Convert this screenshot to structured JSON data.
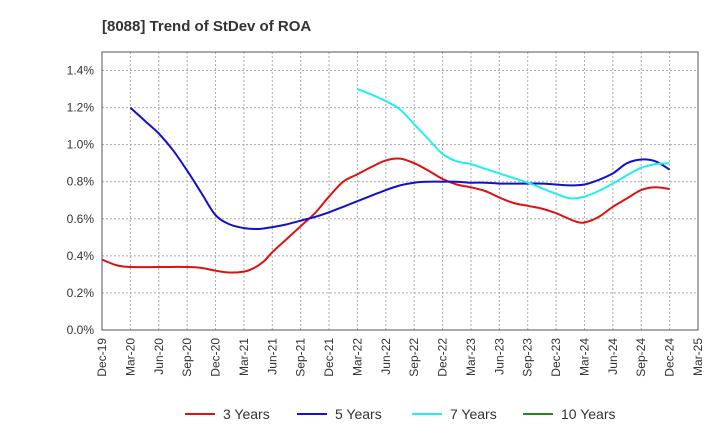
{
  "chart_data": {
    "type": "line",
    "title": "[8088]  Trend of StDev of ROA",
    "xlabel": "",
    "ylabel": "",
    "x_ticks": [
      "Dec-19",
      "Mar-20",
      "Jun-20",
      "Sep-20",
      "Dec-20",
      "Mar-21",
      "Jun-21",
      "Sep-21",
      "Dec-21",
      "Mar-22",
      "Jun-22",
      "Sep-22",
      "Dec-22",
      "Mar-23",
      "Jun-23",
      "Sep-23",
      "Dec-23",
      "Mar-24",
      "Jun-24",
      "Sep-24",
      "Dec-24",
      "Mar-25"
    ],
    "y_ticks": [
      "0.0%",
      "0.2%",
      "0.4%",
      "0.6%",
      "0.8%",
      "1.0%",
      "1.2%",
      "1.4%"
    ],
    "ylim": [
      0,
      1.5
    ],
    "grid": true,
    "legend_position": "bottom",
    "series": [
      {
        "name": "3 Years",
        "color": "#dd1111",
        "x": [
          0,
          0.5,
          1,
          2,
          3,
          3.5,
          4,
          4.5,
          5,
          5.3,
          5.7,
          6,
          6.5,
          7,
          7.5,
          8,
          8.5,
          9,
          9.5,
          10,
          10.5,
          11,
          11.5,
          12,
          12.5,
          13,
          13.5,
          14,
          14.5,
          15,
          15.5,
          16,
          16.3,
          16.7,
          17,
          17.5,
          18,
          18.5,
          19,
          19.5,
          20
        ],
        "values": [
          0.38,
          0.35,
          0.34,
          0.34,
          0.34,
          0.335,
          0.32,
          0.31,
          0.315,
          0.33,
          0.37,
          0.42,
          0.49,
          0.56,
          0.63,
          0.72,
          0.8,
          0.84,
          0.88,
          0.915,
          0.925,
          0.9,
          0.86,
          0.815,
          0.785,
          0.77,
          0.75,
          0.715,
          0.685,
          0.67,
          0.655,
          0.63,
          0.61,
          0.585,
          0.58,
          0.61,
          0.665,
          0.71,
          0.755,
          0.77,
          0.76
        ]
      },
      {
        "name": "5 Years",
        "color": "#1111cc",
        "x": [
          1,
          1.5,
          2,
          2.5,
          3,
          3.5,
          4,
          4.5,
          5,
          5.5,
          6,
          6.5,
          7,
          7.5,
          8,
          8.5,
          9,
          9.5,
          10,
          10.5,
          11,
          11.5,
          12,
          12.5,
          13,
          13.5,
          14,
          14.5,
          15,
          15.5,
          16,
          16.5,
          17,
          17.5,
          18,
          18.5,
          19,
          19.5,
          20
        ],
        "values": [
          1.2,
          1.13,
          1.06,
          0.97,
          0.86,
          0.74,
          0.62,
          0.57,
          0.55,
          0.545,
          0.555,
          0.57,
          0.59,
          0.61,
          0.635,
          0.665,
          0.695,
          0.725,
          0.755,
          0.78,
          0.795,
          0.8,
          0.8,
          0.8,
          0.795,
          0.795,
          0.79,
          0.79,
          0.79,
          0.79,
          0.785,
          0.78,
          0.785,
          0.81,
          0.845,
          0.9,
          0.92,
          0.91,
          0.865
        ]
      },
      {
        "name": "7 Years",
        "color": "#22eeee",
        "x": [
          9,
          9.5,
          10,
          10.5,
          11,
          11.5,
          12,
          12.5,
          13,
          13.5,
          14,
          14.5,
          15,
          15.5,
          16,
          16.5,
          17,
          17.5,
          18,
          18.5,
          19,
          19.5,
          20
        ],
        "values": [
          1.3,
          1.27,
          1.235,
          1.19,
          1.11,
          1.03,
          0.95,
          0.91,
          0.895,
          0.87,
          0.845,
          0.82,
          0.795,
          0.765,
          0.735,
          0.71,
          0.72,
          0.75,
          0.79,
          0.835,
          0.875,
          0.895,
          0.9
        ]
      },
      {
        "name": "10 Years",
        "color": "#228822",
        "x": [],
        "values": []
      }
    ]
  }
}
